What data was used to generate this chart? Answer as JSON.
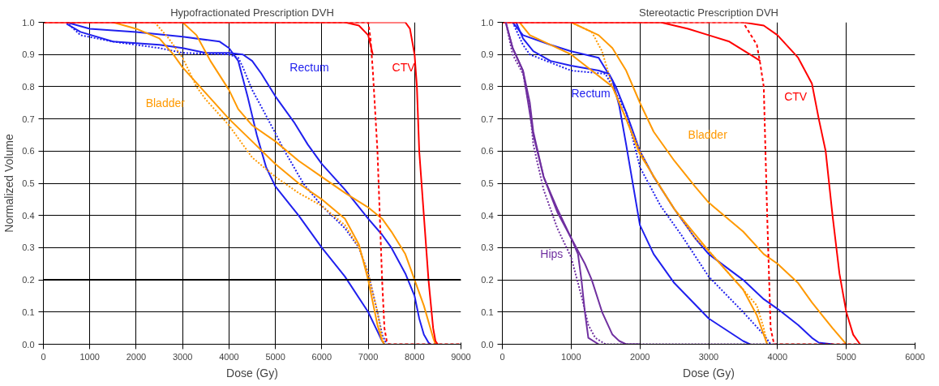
{
  "chart_data": [
    {
      "type": "line",
      "title": "Hypofractionated Prescription DVH",
      "xlabel": "Dose (Gy)",
      "ylabel": "Normalized Volume",
      "xlim": [
        0,
        9000
      ],
      "ylim": [
        0,
        1
      ],
      "xticks": [
        0,
        1000,
        2000,
        3000,
        4000,
        5000,
        6000,
        7000,
        8000,
        9000
      ],
      "yticks": [
        {
          "value": 0,
          "label": "0.0"
        },
        {
          "value": 0.1,
          "label": "0.1"
        },
        {
          "value": 0.2,
          "label": "0.2"
        },
        {
          "value": 0.3,
          "label": "0.3"
        },
        {
          "value": 0.4,
          "label": "0.4"
        },
        {
          "value": 0.5,
          "label": "0.5"
        },
        {
          "value": 0.6,
          "label": "0.6"
        },
        {
          "value": 0.7,
          "label": "0.7"
        },
        {
          "value": 0.8,
          "label": "0.8"
        },
        {
          "value": 0.9,
          "label": "0.9"
        },
        {
          "value": 1,
          "label": "1.0"
        }
      ],
      "grid": true,
      "ref_lines": [
        {
          "axis": "y",
          "value": 0.2,
          "color": "#000000"
        }
      ],
      "series": [
        {
          "name": "Rectum",
          "color": "#2020ee",
          "line_style": "solid",
          "x": [
            500,
            800,
            1500,
            2500,
            3000,
            3500,
            4000,
            4300,
            4500,
            4700,
            5000,
            5400,
            5700,
            6000,
            6500,
            7000,
            7300,
            7500,
            7800,
            8000,
            8100,
            8200,
            8300,
            8350
          ],
          "values": [
            0.995,
            0.97,
            0.94,
            0.93,
            0.92,
            0.905,
            0.905,
            0.9,
            0.88,
            0.84,
            0.77,
            0.69,
            0.62,
            0.56,
            0.48,
            0.39,
            0.34,
            0.3,
            0.22,
            0.15,
            0.08,
            0.03,
            0.005,
            0
          ]
        },
        {
          "color": "#2020ee",
          "line_style": "dotted",
          "x": [
            500,
            800,
            1500,
            2500,
            3000,
            4000,
            4200,
            4300,
            4500,
            4800,
            5200,
            5600,
            6000,
            6500,
            6800,
            7000,
            7200,
            7300,
            7400
          ],
          "values": [
            1,
            0.96,
            0.94,
            0.92,
            0.905,
            0.9,
            0.89,
            0.86,
            0.79,
            0.71,
            0.6,
            0.5,
            0.43,
            0.36,
            0.3,
            0.22,
            0.1,
            0.03,
            0
          ]
        },
        {
          "color": "#2020ee",
          "line_style": "solid",
          "x": [
            500,
            1000,
            2000,
            3000,
            3800,
            4000,
            4200,
            4400,
            4600,
            4800,
            5000,
            5500,
            6000,
            6500,
            7000,
            7200,
            7300,
            7350
          ],
          "values": [
            1,
            0.98,
            0.97,
            0.955,
            0.94,
            0.92,
            0.88,
            0.77,
            0.65,
            0.55,
            0.49,
            0.4,
            0.3,
            0.21,
            0.1,
            0.04,
            0.01,
            0
          ]
        },
        {
          "name": "Bladder",
          "color": "#ff9900",
          "line_style": "solid",
          "x": [
            3000,
            3300,
            3600,
            4000,
            4200,
            4500,
            5000,
            5500,
            6000,
            6500,
            7000,
            7300,
            7500,
            7800,
            8000,
            8200,
            8300,
            8400,
            8450
          ],
          "values": [
            1,
            0.96,
            0.88,
            0.79,
            0.73,
            0.68,
            0.63,
            0.57,
            0.52,
            0.47,
            0.425,
            0.39,
            0.35,
            0.28,
            0.2,
            0.12,
            0.07,
            0.02,
            0
          ]
        },
        {
          "color": "#ff9900",
          "line_style": "dotted",
          "x": [
            2400,
            2700,
            3000,
            3300,
            3500,
            4000,
            4500,
            5000,
            5500,
            6000,
            6500,
            6800,
            7000,
            7200,
            7300,
            7350
          ],
          "values": [
            1,
            0.95,
            0.89,
            0.8,
            0.76,
            0.68,
            0.58,
            0.52,
            0.47,
            0.43,
            0.37,
            0.3,
            0.22,
            0.1,
            0.02,
            0
          ]
        },
        {
          "color": "#ff9900",
          "line_style": "solid",
          "x": [
            1500,
            2000,
            2500,
            2800,
            3000,
            3500,
            4000,
            4500,
            5000,
            5500,
            6000,
            6500,
            6800,
            7000,
            7200,
            7300,
            7350
          ],
          "values": [
            1,
            0.98,
            0.95,
            0.9,
            0.86,
            0.78,
            0.7,
            0.63,
            0.56,
            0.5,
            0.45,
            0.39,
            0.31,
            0.2,
            0.06,
            0.01,
            0
          ]
        },
        {
          "name": "CTV",
          "color": "#ff0000",
          "line_style": "solid",
          "x": [
            0,
            7800,
            7900,
            8000,
            8050,
            8100,
            8200,
            8300,
            8400,
            8450,
            8500
          ],
          "values": [
            1,
            1,
            0.98,
            0.9,
            0.8,
            0.6,
            0.4,
            0.2,
            0.05,
            0.01,
            0
          ]
        },
        {
          "color": "#ff0000",
          "line_style": "solid",
          "x": [
            0,
            6500,
            6800,
            7000,
            7050,
            7100
          ],
          "values": [
            1,
            1,
            0.99,
            0.96,
            0.93,
            0.9
          ]
        },
        {
          "color": "#ff0000",
          "line_style": "dashed",
          "x": [
            0,
            7000,
            7050,
            7100,
            7200,
            7250,
            7300,
            7350,
            7400,
            7450,
            9000
          ],
          "values": [
            1,
            1,
            0.95,
            0.85,
            0.6,
            0.4,
            0.2,
            0.05,
            0.01,
            0,
            0
          ]
        }
      ]
    },
    {
      "type": "line",
      "title": "Stereotactic Prescription DVH",
      "xlabel": "Dose (Gy)",
      "xlim": [
        0,
        6000
      ],
      "ylim": [
        0,
        1
      ],
      "xticks": [
        0,
        1000,
        2000,
        3000,
        4000,
        5000,
        6000
      ],
      "yticks": [
        {
          "value": 0,
          "label": "0.0"
        },
        {
          "value": 0.1,
          "label": "0.1"
        },
        {
          "value": 0.2,
          "label": "0.2"
        },
        {
          "value": 0.3,
          "label": "0.3"
        },
        {
          "value": 0.4,
          "label": "0.4"
        },
        {
          "value": 0.5,
          "label": "0.5"
        },
        {
          "value": 0.6,
          "label": "0.6"
        },
        {
          "value": 0.7,
          "label": "0.7"
        },
        {
          "value": 0.8,
          "label": "0.8"
        },
        {
          "value": 0.9,
          "label": "0.9"
        },
        {
          "value": 1,
          "label": "1.0"
        }
      ],
      "grid": true,
      "series": [
        {
          "name": "Rectum",
          "color": "#2020ee",
          "line_style": "solid",
          "x": [
            200,
            300,
            450,
            700,
            1000,
            1400,
            1550,
            1650,
            1800,
            2000,
            2200,
            2500,
            2800,
            3000,
            3500,
            3800,
            4000,
            4300,
            4500,
            4600,
            4800
          ],
          "values": [
            1,
            0.95,
            0.91,
            0.88,
            0.865,
            0.85,
            0.84,
            0.8,
            0.72,
            0.6,
            0.52,
            0.42,
            0.33,
            0.28,
            0.2,
            0.14,
            0.11,
            0.06,
            0.02,
            0.005,
            0
          ]
        },
        {
          "color": "#2020ee",
          "line_style": "dotted",
          "x": [
            150,
            300,
            400,
            1000,
            1500,
            1600,
            1800,
            2000,
            2300,
            2600,
            3000,
            3500,
            3800,
            3900
          ],
          "values": [
            1,
            0.93,
            0.9,
            0.85,
            0.84,
            0.8,
            0.72,
            0.55,
            0.43,
            0.34,
            0.21,
            0.1,
            0.03,
            0
          ]
        },
        {
          "color": "#2020ee",
          "line_style": "solid",
          "x": [
            150,
            300,
            700,
            1000,
            1400,
            1600,
            1700,
            1800,
            2000,
            2200,
            2500,
            3000,
            3500,
            3600
          ],
          "values": [
            1,
            0.96,
            0.93,
            0.91,
            0.89,
            0.82,
            0.74,
            0.62,
            0.37,
            0.28,
            0.19,
            0.08,
            0.01,
            0
          ]
        },
        {
          "name": "Bladder",
          "color": "#ff9900",
          "line_style": "solid",
          "x": [
            1000,
            1400,
            1600,
            1800,
            2000,
            2200,
            2500,
            2800,
            3000,
            3500,
            3800,
            4000,
            4300,
            4500,
            4800,
            5000
          ],
          "values": [
            1,
            0.96,
            0.92,
            0.85,
            0.75,
            0.66,
            0.57,
            0.49,
            0.44,
            0.35,
            0.28,
            0.25,
            0.19,
            0.13,
            0.05,
            0
          ]
        },
        {
          "color": "#ff9900",
          "line_style": "dotted",
          "x": [
            1000,
            1300,
            1450,
            1600,
            1800,
            2000,
            2200,
            2500,
            2800,
            3000,
            3500,
            3700,
            3800,
            3850
          ],
          "values": [
            1,
            0.97,
            0.91,
            0.8,
            0.7,
            0.6,
            0.52,
            0.42,
            0.33,
            0.29,
            0.17,
            0.12,
            0.05,
            0
          ]
        },
        {
          "color": "#ff9900",
          "line_style": "solid",
          "x": [
            250,
            400,
            1000,
            1300,
            1600,
            1800,
            2000,
            2500,
            3000,
            3500,
            3700,
            3800,
            3850
          ],
          "values": [
            1,
            0.96,
            0.9,
            0.85,
            0.8,
            0.7,
            0.59,
            0.42,
            0.29,
            0.17,
            0.09,
            0.03,
            0
          ]
        },
        {
          "name": "CTV",
          "color": "#ff0000",
          "line_style": "solid",
          "x": [
            0,
            3500,
            3800,
            4000,
            4300,
            4500,
            4600,
            4700,
            4800,
            4900,
            5000,
            5100,
            5200
          ],
          "values": [
            1,
            1,
            0.99,
            0.96,
            0.89,
            0.81,
            0.7,
            0.6,
            0.4,
            0.22,
            0.1,
            0.03,
            0
          ]
        },
        {
          "color": "#ff0000",
          "line_style": "solid",
          "x": [
            0,
            2300,
            2700,
            3000,
            3300,
            3600,
            3750
          ],
          "values": [
            1,
            1,
            0.98,
            0.96,
            0.94,
            0.9,
            0.88
          ]
        },
        {
          "color": "#ff0000",
          "line_style": "dashed",
          "x": [
            0,
            3500,
            3700,
            3750,
            3800,
            3850,
            3900,
            3950,
            5200
          ],
          "values": [
            1,
            1,
            0.93,
            0.87,
            0.8,
            0.4,
            0.05,
            0,
            0
          ]
        },
        {
          "name": "Hips",
          "color": "#7030a0",
          "line_style": "solid",
          "x": [
            50,
            150,
            300,
            400,
            450,
            600,
            800,
            1000,
            1200,
            1300,
            1450,
            1600,
            1700,
            1800,
            2000
          ],
          "values": [
            1,
            0.92,
            0.85,
            0.75,
            0.66,
            0.52,
            0.42,
            0.33,
            0.25,
            0.2,
            0.1,
            0.03,
            0.01,
            0,
            0
          ]
        },
        {
          "color": "#7030a0",
          "line_style": "dotted",
          "x": [
            50,
            150,
            300,
            400,
            450,
            600,
            800,
            1000,
            1150,
            1250,
            1350,
            1500,
            4000
          ],
          "values": [
            1,
            0.9,
            0.84,
            0.73,
            0.62,
            0.48,
            0.36,
            0.27,
            0.15,
            0.06,
            0.02,
            0,
            0
          ]
        },
        {
          "color": "#7030a0",
          "line_style": "solid",
          "x": [
            50,
            150,
            300,
            450,
            600,
            800,
            1000,
            1100,
            1150,
            1200,
            1250,
            1400
          ],
          "values": [
            1,
            0.92,
            0.85,
            0.65,
            0.52,
            0.41,
            0.33,
            0.28,
            0.2,
            0.1,
            0.02,
            0
          ]
        }
      ]
    }
  ]
}
